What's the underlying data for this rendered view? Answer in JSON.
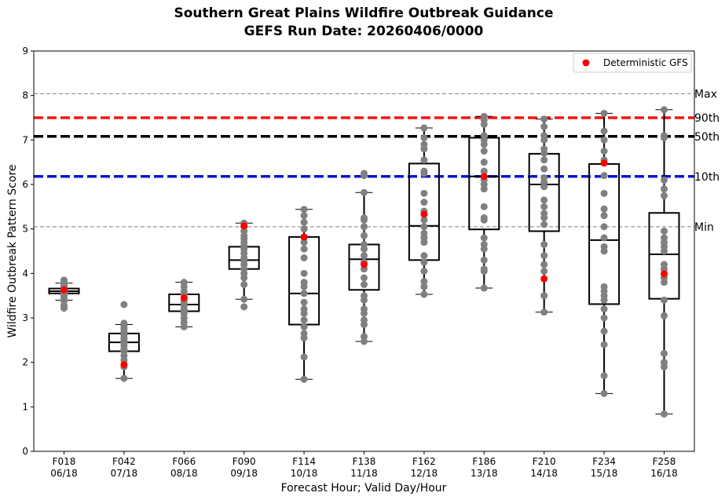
{
  "chart_data": {
    "type": "box",
    "title_line1": "Southern Great Plains Wildfire Outbreak Guidance",
    "title_line2": "GEFS Run Date: 20260406/0000",
    "xlabel": "Forecast Hour; Valid Day/Hour",
    "ylabel": "Wildfire Outbreak Pattern Score",
    "ylim": [
      0,
      9
    ],
    "yticks": [
      0,
      1,
      2,
      3,
      4,
      5,
      6,
      7,
      8,
      9
    ],
    "categories": [
      {
        "hour": "F018",
        "valid": "06/18"
      },
      {
        "hour": "F042",
        "valid": "07/18"
      },
      {
        "hour": "F066",
        "valid": "08/18"
      },
      {
        "hour": "F090",
        "valid": "09/18"
      },
      {
        "hour": "F114",
        "valid": "10/18"
      },
      {
        "hour": "F138",
        "valid": "11/18"
      },
      {
        "hour": "F162",
        "valid": "12/18"
      },
      {
        "hour": "F186",
        "valid": "13/18"
      },
      {
        "hour": "F210",
        "valid": "14/18"
      },
      {
        "hour": "F234",
        "valid": "15/18"
      },
      {
        "hour": "F258",
        "valid": "16/18"
      }
    ],
    "boxes": [
      {
        "whislo": 3.4,
        "q1": 3.55,
        "med": 3.6,
        "q3": 3.66,
        "whishi": 3.78
      },
      {
        "whislo": 1.64,
        "q1": 2.25,
        "med": 2.45,
        "q3": 2.65,
        "whishi": 2.85
      },
      {
        "whislo": 2.8,
        "q1": 3.15,
        "med": 3.3,
        "q3": 3.53,
        "whishi": 3.8
      },
      {
        "whislo": 3.42,
        "q1": 4.1,
        "med": 4.3,
        "q3": 4.6,
        "whishi": 5.13
      },
      {
        "whislo": 1.62,
        "q1": 2.85,
        "med": 3.55,
        "q3": 4.82,
        "whishi": 5.44
      },
      {
        "whislo": 2.47,
        "q1": 3.63,
        "med": 4.32,
        "q3": 4.65,
        "whishi": 5.82
      },
      {
        "whislo": 3.53,
        "q1": 4.3,
        "med": 5.07,
        "q3": 6.47,
        "whishi": 7.27
      },
      {
        "whislo": 3.67,
        "q1": 4.99,
        "med": 6.18,
        "q3": 7.05,
        "whishi": 7.53
      },
      {
        "whislo": 3.13,
        "q1": 4.95,
        "med": 6.0,
        "q3": 6.69,
        "whishi": 7.47
      },
      {
        "whislo": 1.3,
        "q1": 3.31,
        "med": 4.75,
        "q3": 6.46,
        "whishi": 7.6
      },
      {
        "whislo": 0.84,
        "q1": 3.43,
        "med": 4.43,
        "q3": 5.36,
        "whishi": 7.68
      }
    ],
    "members": [
      [
        3.22,
        3.28,
        3.38,
        3.45,
        3.5,
        3.55,
        3.58,
        3.6,
        3.62,
        3.64,
        3.66,
        3.7,
        3.74,
        3.78,
        3.82,
        3.85
      ],
      [
        1.64,
        1.9,
        2.05,
        2.15,
        2.25,
        2.3,
        2.38,
        2.45,
        2.5,
        2.55,
        2.62,
        2.68,
        2.75,
        2.82,
        2.88,
        3.3
      ],
      [
        2.8,
        2.9,
        3.0,
        3.1,
        3.15,
        3.2,
        3.28,
        3.32,
        3.38,
        3.45,
        3.52,
        3.6,
        3.7,
        3.8
      ],
      [
        3.25,
        3.42,
        3.75,
        3.9,
        4.0,
        4.1,
        4.2,
        4.28,
        4.35,
        4.45,
        4.55,
        4.62,
        4.7,
        4.78,
        4.85,
        4.95,
        5.05,
        5.13
      ],
      [
        1.62,
        2.12,
        2.55,
        2.65,
        2.8,
        2.95,
        3.1,
        3.2,
        3.35,
        3.55,
        3.7,
        3.8,
        4.0,
        4.35,
        4.55,
        4.7,
        4.8,
        5.0,
        5.15,
        5.3,
        5.44
      ],
      [
        2.47,
        2.58,
        2.85,
        2.95,
        3.1,
        3.2,
        3.4,
        3.5,
        3.75,
        3.9,
        4.1,
        4.25,
        4.4,
        4.55,
        4.65,
        4.85,
        5.05,
        5.2,
        5.25,
        5.82,
        6.2,
        6.25
      ],
      [
        3.53,
        3.7,
        3.82,
        4.05,
        4.25,
        4.4,
        4.7,
        4.8,
        4.9,
        5.05,
        5.2,
        5.4,
        5.6,
        5.8,
        6.25,
        6.3,
        6.55,
        6.8,
        6.9,
        7.05,
        7.27
      ],
      [
        3.67,
        4.05,
        4.1,
        4.3,
        4.55,
        4.65,
        4.8,
        5.2,
        5.25,
        5.5,
        5.9,
        6.0,
        6.1,
        6.3,
        6.5,
        6.75,
        6.9,
        7.0,
        7.1,
        7.35,
        7.45,
        7.53
      ],
      [
        3.13,
        3.5,
        4.05,
        4.2,
        4.4,
        4.65,
        5.1,
        5.25,
        5.35,
        5.5,
        5.65,
        5.95,
        6.05,
        6.15,
        6.35,
        6.55,
        6.7,
        6.8,
        7.0,
        7.1,
        7.3,
        7.47
      ],
      [
        1.3,
        1.7,
        2.4,
        2.7,
        3.0,
        3.2,
        3.4,
        3.5,
        3.6,
        3.7,
        4.5,
        4.6,
        4.8,
        5.05,
        5.3,
        5.45,
        5.8,
        6.2,
        6.55,
        6.75,
        7.0,
        7.2,
        7.6
      ],
      [
        0.84,
        1.9,
        2.0,
        2.2,
        3.05,
        3.4,
        3.8,
        3.9,
        4.0,
        4.1,
        4.2,
        4.5,
        4.6,
        4.7,
        4.8,
        4.95,
        5.75,
        5.9,
        6.1,
        7.05,
        7.1,
        7.68
      ]
    ],
    "deterministic_gfs": [
      3.63,
      1.95,
      3.45,
      5.07,
      4.82,
      4.2,
      5.33,
      6.18,
      3.88,
      6.48,
      3.99
    ],
    "reference_lines": [
      {
        "label": "Max",
        "value": 8.04,
        "color": "#808080",
        "style": "dashed-thin"
      },
      {
        "label": "90th",
        "value": 7.5,
        "color": "#ff1010",
        "style": "dashed-thick"
      },
      {
        "label": "50th",
        "value": 7.08,
        "color": "#000000",
        "style": "dashed-thick"
      },
      {
        "label": "10th",
        "value": 6.18,
        "color": "#0a14d4",
        "style": "dashed-thick"
      },
      {
        "label": "Min",
        "value": 5.05,
        "color": "#808080",
        "style": "dashed-thin"
      }
    ],
    "legend": {
      "label": "Deterministic GFS",
      "placement": "top-right",
      "marker_color": "#ff0000"
    },
    "member_color": "#808080",
    "gfs_color": "#ff0000"
  }
}
